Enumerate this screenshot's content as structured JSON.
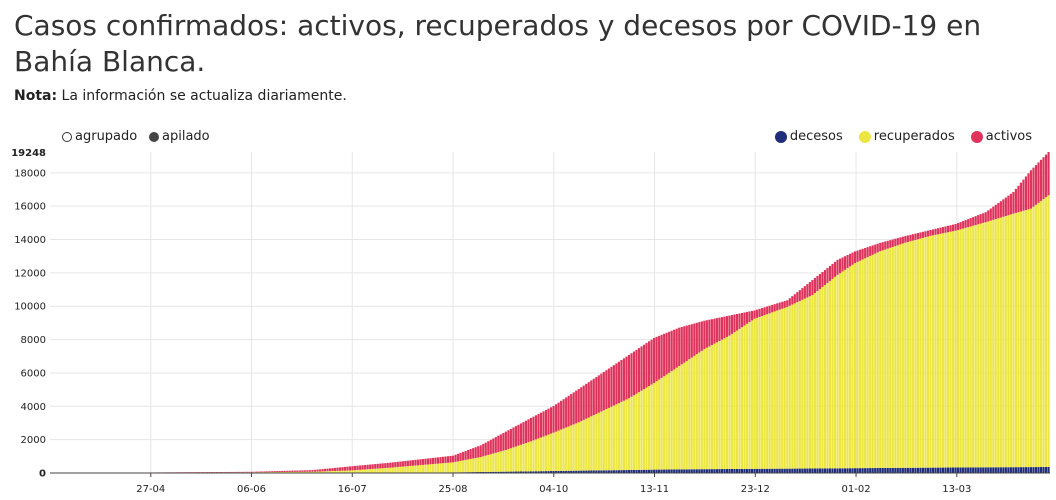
{
  "title": "Casos confirmados: activos, recuperados y decesos por COVID-19 en Bahía Blanca.",
  "note": {
    "label": "Nota:",
    "text": "La información se actualiza diariamente."
  },
  "modes": [
    {
      "label": "agrupado",
      "selected": false
    },
    {
      "label": "apilado",
      "selected": true
    }
  ],
  "colors": {
    "decesos": "#1f2d7a",
    "recuperados": "#ece642",
    "activos": "#e0335c"
  },
  "chart_data": {
    "type": "bar",
    "stacked": true,
    "xlabel": "",
    "ylabel": "",
    "ylim": [
      0,
      19248
    ],
    "yticks": [
      0,
      2000,
      4000,
      6000,
      8000,
      10000,
      12000,
      14000,
      16000,
      18000
    ],
    "ymax_label": "19248",
    "xtick_labels": [
      "27-04",
      "06-06",
      "16-07",
      "25-08",
      "04-10",
      "13-11",
      "23-12",
      "01-02",
      "13-03"
    ],
    "legend_position": "top-right",
    "grid": true,
    "series": [
      {
        "name": "decesos",
        "key": "decesos"
      },
      {
        "name": "recuperados",
        "key": "recuperados"
      },
      {
        "name": "activos",
        "key": "activos"
      }
    ],
    "x_range": [
      "2020-03-18",
      "2021-04-19"
    ],
    "points": [
      {
        "date": "2020-03-18",
        "decesos": 0,
        "recuperados": 0,
        "activos": 1
      },
      {
        "date": "2020-04-27",
        "decesos": 2,
        "recuperados": 20,
        "activos": 10
      },
      {
        "date": "2020-06-06",
        "decesos": 3,
        "recuperados": 40,
        "activos": 30
      },
      {
        "date": "2020-06-30",
        "decesos": 5,
        "recuperados": 70,
        "activos": 100
      },
      {
        "date": "2020-07-16",
        "decesos": 10,
        "recuperados": 150,
        "activos": 250
      },
      {
        "date": "2020-07-31",
        "decesos": 20,
        "recuperados": 300,
        "activos": 300
      },
      {
        "date": "2020-08-25",
        "decesos": 40,
        "recuperados": 600,
        "activos": 400
      },
      {
        "date": "2020-09-05",
        "decesos": 60,
        "recuperados": 900,
        "activos": 700
      },
      {
        "date": "2020-09-15",
        "decesos": 80,
        "recuperados": 1300,
        "activos": 1100
      },
      {
        "date": "2020-09-25",
        "decesos": 100,
        "recuperados": 1800,
        "activos": 1400
      },
      {
        "date": "2020-10-04",
        "decesos": 120,
        "recuperados": 2300,
        "activos": 1600
      },
      {
        "date": "2020-10-14",
        "decesos": 140,
        "recuperados": 2900,
        "activos": 2000
      },
      {
        "date": "2020-10-24",
        "decesos": 160,
        "recuperados": 3600,
        "activos": 2300
      },
      {
        "date": "2020-11-03",
        "decesos": 180,
        "recuperados": 4300,
        "activos": 2600
      },
      {
        "date": "2020-11-13",
        "decesos": 200,
        "recuperados": 5200,
        "activos": 2700
      },
      {
        "date": "2020-11-23",
        "decesos": 215,
        "recuperados": 6200,
        "activos": 2300
      },
      {
        "date": "2020-12-03",
        "decesos": 230,
        "recuperados": 7200,
        "activos": 1700
      },
      {
        "date": "2020-12-13",
        "decesos": 240,
        "recuperados": 8000,
        "activos": 1200
      },
      {
        "date": "2020-12-23",
        "decesos": 250,
        "recuperados": 9000,
        "activos": 500
      },
      {
        "date": "2021-01-05",
        "decesos": 260,
        "recuperados": 9700,
        "activos": 400
      },
      {
        "date": "2021-01-15",
        "decesos": 270,
        "recuperados": 10400,
        "activos": 900
      },
      {
        "date": "2021-01-25",
        "decesos": 280,
        "recuperados": 11600,
        "activos": 900
      },
      {
        "date": "2021-02-01",
        "decesos": 290,
        "recuperados": 12300,
        "activos": 700
      },
      {
        "date": "2021-02-11",
        "decesos": 300,
        "recuperados": 13000,
        "activos": 500
      },
      {
        "date": "2021-02-21",
        "decesos": 310,
        "recuperados": 13500,
        "activos": 400
      },
      {
        "date": "2021-03-03",
        "decesos": 320,
        "recuperados": 13900,
        "activos": 350
      },
      {
        "date": "2021-03-13",
        "decesos": 330,
        "recuperados": 14200,
        "activos": 400
      },
      {
        "date": "2021-03-25",
        "decesos": 340,
        "recuperados": 14700,
        "activos": 600
      },
      {
        "date": "2021-04-05",
        "decesos": 350,
        "recuperados": 15200,
        "activos": 1300
      },
      {
        "date": "2021-04-12",
        "decesos": 355,
        "recuperados": 15500,
        "activos": 2300
      },
      {
        "date": "2021-04-19",
        "decesos": 360,
        "recuperados": 16300,
        "activos": 2588
      }
    ]
  }
}
